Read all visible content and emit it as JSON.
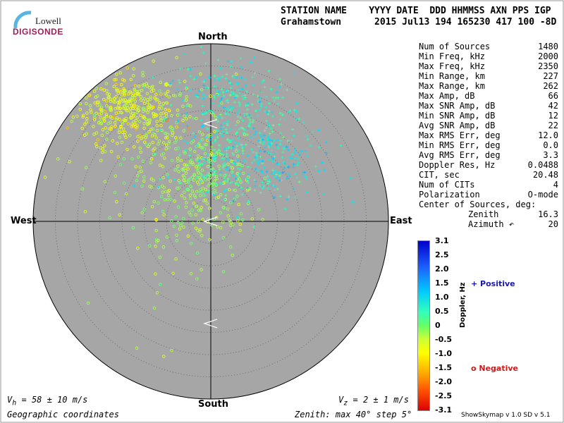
{
  "logo": {
    "top": "Lowell",
    "bottom": "DIGISONDE"
  },
  "header": {
    "columns_line": "STATION NAME    YYYY DATE  DDD HHMMSS AXN PPS IGP",
    "values_line": "Grahamstown      2015 Jul13 194 165230 417 100 -8D"
  },
  "directions": {
    "north": "North",
    "south": "South",
    "east": "East",
    "west": "West"
  },
  "stats": [
    {
      "key": "Num of Sources",
      "value": "1480"
    },
    {
      "key": "Min Freq, kHz",
      "value": "2000"
    },
    {
      "key": "Max Freq, kHz",
      "value": "2350"
    },
    {
      "key": "Min Range, km",
      "value": "227"
    },
    {
      "key": "Max Range, km",
      "value": "262"
    },
    {
      "key": "Max Amp, dB",
      "value": "66"
    },
    {
      "key": "Max SNR Amp, dB",
      "value": "42"
    },
    {
      "key": "Min SNR Amp, dB",
      "value": "12"
    },
    {
      "key": "Avg SNR Amp, dB",
      "value": "22"
    },
    {
      "key": "Max RMS Err, deg",
      "value": "12.0"
    },
    {
      "key": "Min RMS Err, deg",
      "value": "0.0"
    },
    {
      "key": "Avg RMS Err, deg",
      "value": "3.3"
    },
    {
      "key": "Doppler Res, Hz",
      "value": "0.0488"
    },
    {
      "key": "CIT, sec",
      "value": "20.48"
    },
    {
      "key": "Num of CITs",
      "value": "4"
    },
    {
      "key": "Polarization",
      "value": "O-mode"
    },
    {
      "key": "Center of Sources, deg:",
      "value": ""
    },
    {
      "key": "Zenith",
      "value": "16.3"
    },
    {
      "key": "Azimuth ↶",
      "value": "20"
    }
  ],
  "colorbar": {
    "title": "Doppler, Hz",
    "ticks": [
      "3.1",
      "2.5",
      "2.0",
      "1.5",
      "1.0",
      "0.5",
      "0",
      "-0.5",
      "-1.0",
      "-1.5",
      "-2.0",
      "-2.5",
      "-3.1"
    ]
  },
  "legend": {
    "positive": "+ Positive",
    "negative": "o Negative"
  },
  "footer": {
    "vh": "V<sub>h</sub> = 58 ± 10 m/s",
    "vz": "V<sub>z</sub> = 2 ± 1 m/s",
    "coords": "Geographic coordinates",
    "zenith": "Zenith: max 40°  step 5°",
    "version": "ShowSkymap v 1.0   SD v 5.1"
  },
  "chart_data": {
    "type": "scatter",
    "coordinate_system": "polar skymap (zenith angle, azimuth)",
    "zenith_max_deg": 40,
    "zenith_step_deg": 5,
    "center_of_sources": {
      "zenith_deg": 16.3,
      "azimuth_deg": 20
    },
    "doppler_range_hz": [
      -3.1,
      3.1
    ],
    "clusters": [
      {
        "polarity": "negative",
        "marker": "o",
        "center": [
          -19,
          25
        ],
        "spread": [
          6,
          4
        ],
        "count": 380,
        "doppler_hz": -0.8
      },
      {
        "polarity": "negative",
        "marker": "o",
        "center": [
          -2,
          7
        ],
        "spread": [
          6,
          7
        ],
        "count": 240,
        "doppler_hz": -0.3
      },
      {
        "polarity": "negative",
        "marker": "o",
        "center": [
          -9,
          16
        ],
        "spread": [
          9,
          8
        ],
        "count": 140,
        "doppler_hz": -0.4
      },
      {
        "polarity": "negative",
        "marker": "o",
        "center": [
          -10,
          -9
        ],
        "spread": [
          6,
          9
        ],
        "count": 30,
        "doppler_hz": -0.5
      },
      {
        "polarity": "positive",
        "marker": "+",
        "center": [
          6,
          20
        ],
        "spread": [
          7,
          8
        ],
        "count": 340,
        "doppler_hz": 0.6
      },
      {
        "polarity": "positive",
        "marker": "+",
        "center": [
          15,
          13
        ],
        "spread": [
          6,
          4
        ],
        "count": 150,
        "doppler_hz": 0.9
      },
      {
        "polarity": "positive",
        "marker": "+",
        "center": [
          2,
          28
        ],
        "spread": [
          5,
          5
        ],
        "count": 120,
        "doppler_hz": 0.7
      },
      {
        "polarity": "positive",
        "marker": "+",
        "center": [
          0,
          10
        ],
        "spread": [
          3,
          3
        ],
        "count": 80,
        "doppler_hz": 0.4
      }
    ],
    "markers": [
      {
        "shape": "chevron-left",
        "zenith_deg": 22,
        "azimuth_deg": 0
      },
      {
        "shape": "chevron-left",
        "zenith_deg": 0,
        "azimuth_deg": 0
      },
      {
        "shape": "chevron-left",
        "zenith_deg": 23,
        "azimuth_deg": 180
      }
    ]
  }
}
